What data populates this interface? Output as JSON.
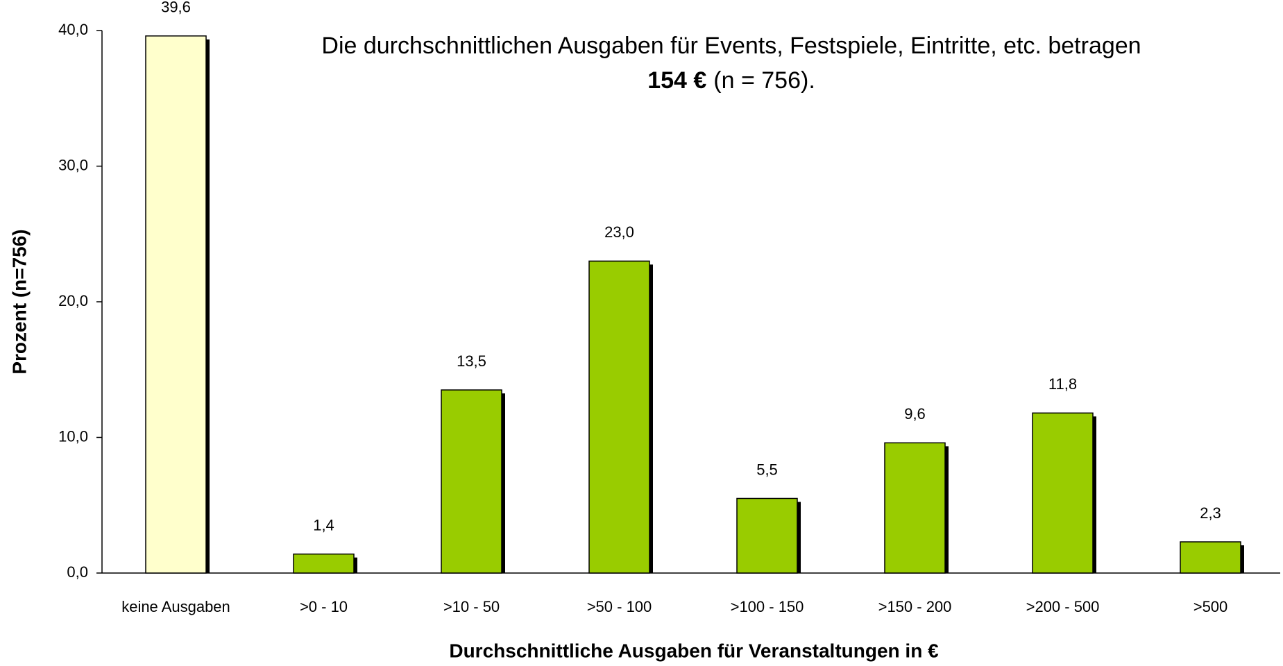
{
  "chart_data": {
    "type": "bar",
    "title": "Die durchschnittlichen Ausgaben für Events, Festspiele, Eintritte, etc. betragen",
    "annotation": {
      "bold": "154 €",
      "text": "(n = 756)."
    },
    "x_label": "Durchschnittliche Ausgaben für Veranstaltungen in €",
    "y_label": "Prozent (n=756)",
    "categories": [
      "keine Ausgaben",
      ">0 - 10",
      ">10 - 50",
      ">50 - 100",
      ">100 - 150",
      ">150 - 200",
      ">200 - 500",
      ">500"
    ],
    "values": [
      39.6,
      1.4,
      13.5,
      23.0,
      5.5,
      9.6,
      11.8,
      2.3
    ],
    "value_labels": [
      "39,6",
      "1,4",
      "13,5",
      "23,0",
      "5,5",
      "9,6",
      "11,8",
      "2,3"
    ],
    "colors": [
      "#ffffcc",
      "#99cc00",
      "#99cc00",
      "#99cc00",
      "#99cc00",
      "#99cc00",
      "#99cc00",
      "#99cc00"
    ],
    "ylim": [
      0,
      40
    ],
    "yticks": [
      {
        "value": 0,
        "label": "0,0"
      },
      {
        "value": 10,
        "label": "10,0"
      },
      {
        "value": 20,
        "label": "20,0"
      },
      {
        "value": 30,
        "label": "30,0"
      },
      {
        "value": 40,
        "label": "40,0"
      }
    ],
    "grid": false
  }
}
